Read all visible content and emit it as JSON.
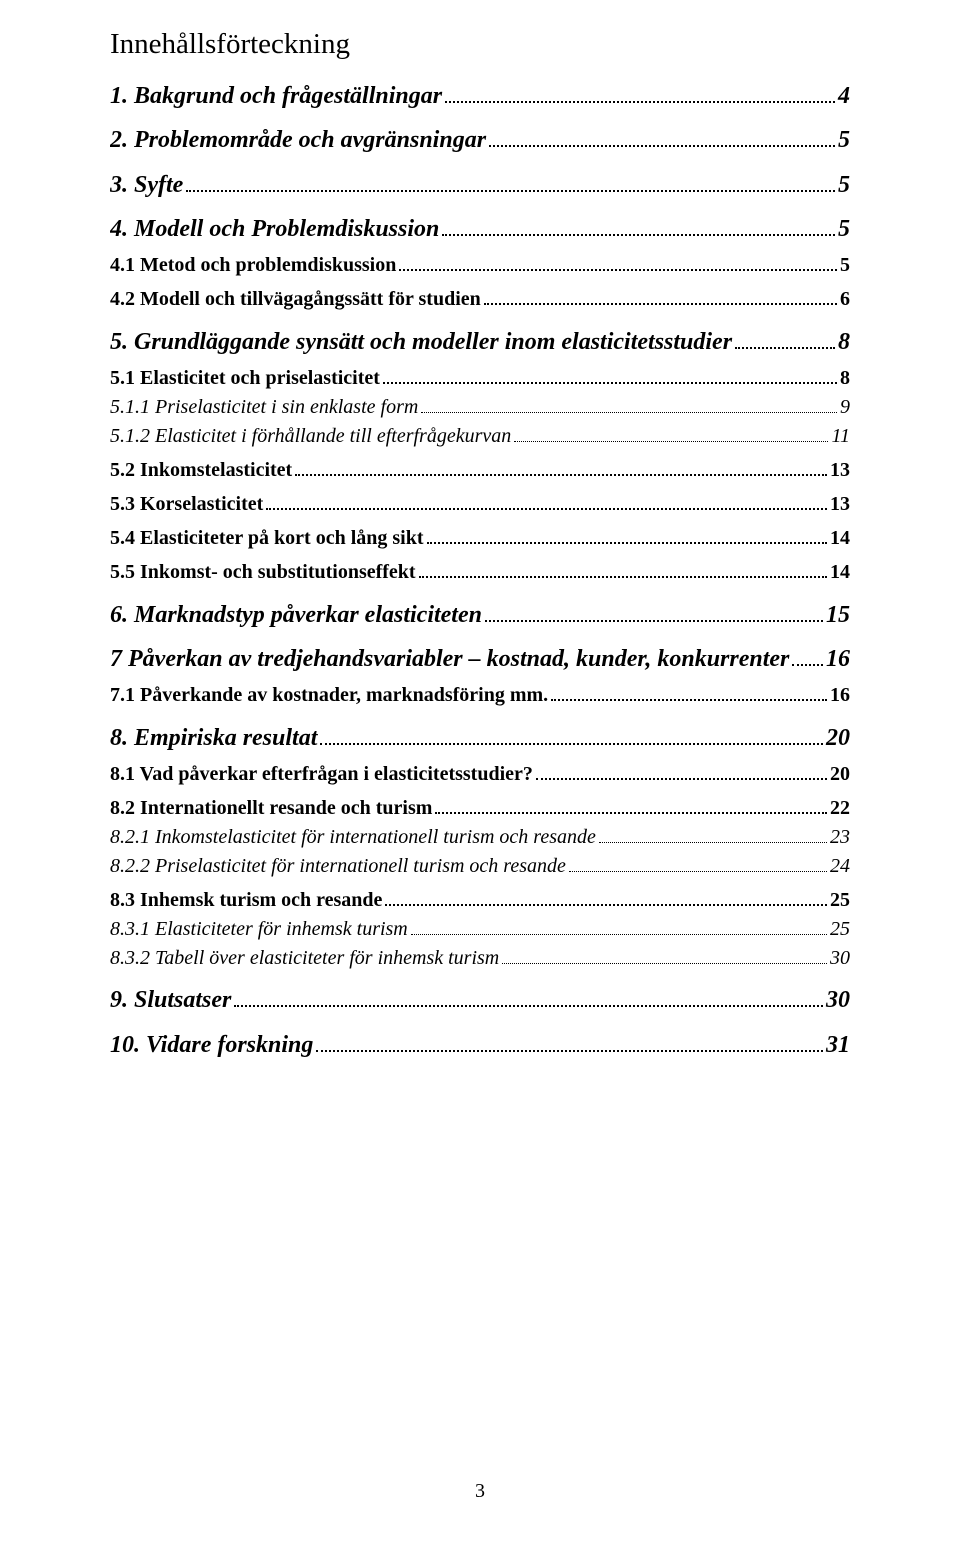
{
  "title": "Innehållsförteckning",
  "page_number": "3",
  "colors": {
    "text": "#000000",
    "background": "#ffffff"
  },
  "typography": {
    "family": "Times New Roman",
    "title_fontsize": 29,
    "lvl1_fontsize": 24,
    "lvl2_fontsize": 20,
    "lvl3_fontsize": 20
  },
  "entries": [
    {
      "level": 1,
      "label": "1. Bakgrund och frågeställningar",
      "page": "4"
    },
    {
      "level": 1,
      "label": "2. Problemområde och avgränsningar",
      "page": "5"
    },
    {
      "level": 1,
      "label": "3. Syfte",
      "page": "5"
    },
    {
      "level": 1,
      "label": "4. Modell och Problemdiskussion",
      "page": "5"
    },
    {
      "level": 2,
      "label": "4.1 Metod och problemdiskussion",
      "page": "5"
    },
    {
      "level": 2,
      "label": "4.2 Modell och tillvägagångssätt för studien",
      "page": "6"
    },
    {
      "level": 1,
      "label": "5. Grundläggande synsätt och modeller inom elasticitetsstudier",
      "page": "8"
    },
    {
      "level": 2,
      "label": "5.1 Elasticitet och priselasticitet",
      "page": "8"
    },
    {
      "level": 3,
      "label": "5.1.1 Priselasticitet i sin enklaste form",
      "page": "9"
    },
    {
      "level": 3,
      "label": "5.1.2 Elasticitet i förhållande till efterfrågekurvan",
      "page": "11"
    },
    {
      "level": 2,
      "label": "5.2 Inkomstelasticitet",
      "page": "13"
    },
    {
      "level": 2,
      "label": "5.3 Korselasticitet",
      "page": "13"
    },
    {
      "level": 2,
      "label": "5.4 Elasticiteter på kort och lång sikt",
      "page": "14"
    },
    {
      "level": 2,
      "label": "5.5 Inkomst- och substitutionseffekt",
      "page": "14"
    },
    {
      "level": 1,
      "label": "6. Marknadstyp påverkar elasticiteten",
      "page": "15"
    },
    {
      "level": 1,
      "label": "7 Påverkan av tredjehandsvariabler – kostnad, kunder, konkurrenter",
      "page": "16"
    },
    {
      "level": 2,
      "label": "7.1 Påverkande av kostnader, marknadsföring mm.",
      "page": "16"
    },
    {
      "level": 1,
      "label": "8. Empiriska resultat",
      "page": "20"
    },
    {
      "level": 2,
      "label": "8.1 Vad påverkar efterfrågan i elasticitetsstudier?",
      "page": "20"
    },
    {
      "level": 2,
      "label": "8.2 Internationellt resande och turism",
      "page": "22"
    },
    {
      "level": 3,
      "label": "8.2.1 Inkomstelasticitet för internationell turism och resande",
      "page": "23"
    },
    {
      "level": 3,
      "label": "8.2.2 Priselasticitet för internationell turism och resande",
      "page": "24"
    },
    {
      "level": 2,
      "label": "8.3 Inhemsk turism och resande",
      "page": "25"
    },
    {
      "level": 3,
      "label": "8.3.1 Elasticiteter för inhemsk turism",
      "page": "25"
    },
    {
      "level": 3,
      "label": "8.3.2 Tabell över elasticiteter för inhemsk turism",
      "page": "30"
    },
    {
      "level": 1,
      "label": "9. Slutsatser",
      "page": "30"
    },
    {
      "level": 1,
      "label": "10. Vidare forskning",
      "page": "31"
    }
  ]
}
